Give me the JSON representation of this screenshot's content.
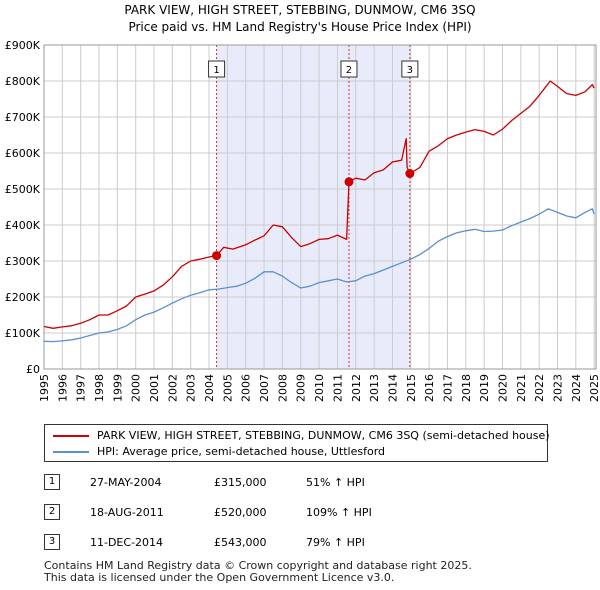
{
  "title": "PARK VIEW, HIGH STREET, STEBBING, DUNMOW, CM6 3SQ",
  "subtitle": "Price paid vs. HM Land Registry's House Price Index (HPI)",
  "colors": {
    "property": "#cc0000",
    "hpi": "#5b8fd0",
    "shade": "#e8ecfa",
    "grid": "#cccccc"
  },
  "chart_data": {
    "type": "line",
    "title": "PARK VIEW, HIGH STREET, STEBBING, DUNMOW, CM6 3SQ",
    "subtitle": "Price paid vs. HM Land Registry's House Price Index (HPI)",
    "xlim": [
      1995,
      2025.1
    ],
    "ylim": [
      0,
      900000
    ],
    "x_tick_labels": [
      "1995",
      "1996",
      "1997",
      "1998",
      "1999",
      "2000",
      "2001",
      "2002",
      "2003",
      "2004",
      "2005",
      "2006",
      "2007",
      "2008",
      "2009",
      "2010",
      "2011",
      "2012",
      "2013",
      "2014",
      "2015",
      "2016",
      "2017",
      "2018",
      "2019",
      "2020",
      "2021",
      "2022",
      "2023",
      "2024",
      "2025"
    ],
    "y_ticks": [
      0,
      100000,
      200000,
      300000,
      400000,
      500000,
      600000,
      700000,
      800000,
      900000
    ],
    "y_tick_labels": [
      "£0",
      "£100K",
      "£200K",
      "£300K",
      "£400K",
      "£500K",
      "£600K",
      "£700K",
      "£800K",
      "£900K"
    ],
    "grid": true,
    "shaded_region": [
      2004.4,
      2014.95
    ],
    "series": [
      {
        "name": "PARK VIEW, HIGH STREET, STEBBING, DUNMOW, CM6 3SQ (semi-detached house)",
        "x": [
          1995.0,
          1995.5,
          1996.0,
          1996.5,
          1997.0,
          1997.5,
          1998.0,
          1998.5,
          1999.0,
          1999.5,
          2000.0,
          2000.5,
          2001.0,
          2001.5,
          2002.0,
          2002.5,
          2003.0,
          2003.5,
          2004.0,
          2004.41,
          2004.8,
          2005.3,
          2006.0,
          2006.5,
          2007.0,
          2007.5,
          2008.0,
          2008.5,
          2009.0,
          2009.5,
          2010.0,
          2010.5,
          2011.0,
          2011.5,
          2011.63,
          2012.0,
          2012.5,
          2013.0,
          2013.5,
          2014.0,
          2014.5,
          2014.75,
          2014.8,
          2014.95,
          2015.5,
          2016.0,
          2016.5,
          2017.0,
          2017.5,
          2018.0,
          2018.5,
          2019.0,
          2019.5,
          2020.0,
          2020.5,
          2021.0,
          2021.5,
          2022.0,
          2022.3,
          2022.6,
          2023.0,
          2023.5,
          2024.0,
          2024.5,
          2024.9,
          2025.0
        ],
        "y": [
          118000,
          113000,
          117000,
          120000,
          127000,
          137000,
          150000,
          150000,
          162000,
          175000,
          200000,
          208000,
          217000,
          233000,
          256000,
          285000,
          300000,
          305000,
          311000,
          315000,
          338000,
          333000,
          345000,
          358000,
          370000,
          400000,
          395000,
          365000,
          340000,
          348000,
          360000,
          362000,
          372000,
          360000,
          520000,
          530000,
          525000,
          545000,
          553000,
          575000,
          580000,
          640000,
          560000,
          543000,
          560000,
          605000,
          620000,
          640000,
          650000,
          658000,
          665000,
          660000,
          650000,
          666000,
          690000,
          710000,
          730000,
          760000,
          780000,
          800000,
          785000,
          765000,
          760000,
          770000,
          790000,
          780000
        ]
      },
      {
        "name": "HPI: Average price, semi-detached house, Uttlesford",
        "x": [
          1995.0,
          1995.5,
          1996.0,
          1996.5,
          1997.0,
          1997.5,
          1998.0,
          1998.5,
          1999.0,
          1999.5,
          2000.0,
          2000.5,
          2001.0,
          2001.5,
          2002.0,
          2002.5,
          2003.0,
          2003.5,
          2004.0,
          2004.5,
          2005.0,
          2005.5,
          2006.0,
          2006.5,
          2007.0,
          2007.5,
          2008.0,
          2008.5,
          2009.0,
          2009.5,
          2010.0,
          2010.5,
          2011.0,
          2011.5,
          2012.0,
          2012.5,
          2013.0,
          2013.5,
          2014.0,
          2014.5,
          2015.0,
          2015.5,
          2016.0,
          2016.5,
          2017.0,
          2017.5,
          2018.0,
          2018.5,
          2019.0,
          2019.5,
          2020.0,
          2020.5,
          2021.0,
          2021.5,
          2022.0,
          2022.5,
          2023.0,
          2023.5,
          2024.0,
          2024.5,
          2024.9,
          2025.0
        ],
        "y": [
          77000,
          76000,
          78000,
          81000,
          86000,
          93000,
          100000,
          103000,
          110000,
          120000,
          137000,
          150000,
          158000,
          170000,
          183000,
          195000,
          205000,
          212000,
          220000,
          222000,
          226000,
          230000,
          238000,
          252000,
          270000,
          270000,
          258000,
          240000,
          225000,
          230000,
          240000,
          245000,
          250000,
          242000,
          245000,
          258000,
          265000,
          275000,
          285000,
          295000,
          305000,
          318000,
          335000,
          355000,
          368000,
          378000,
          384000,
          388000,
          382000,
          383000,
          386000,
          398000,
          408000,
          418000,
          430000,
          445000,
          435000,
          425000,
          420000,
          435000,
          445000,
          430000
        ]
      }
    ],
    "sales": [
      {
        "num": "1",
        "x": 2004.41,
        "y": 315000
      },
      {
        "num": "2",
        "x": 2011.63,
        "y": 520000
      },
      {
        "num": "3",
        "x": 2014.95,
        "y": 543000
      }
    ]
  },
  "legend": {
    "property_label": "PARK VIEW, HIGH STREET, STEBBING, DUNMOW, CM6 3SQ (semi-detached house)",
    "hpi_label": "HPI: Average price, semi-detached house, Uttlesford"
  },
  "sales_table": [
    {
      "num": "1",
      "date": "27-MAY-2004",
      "price": "£315,000",
      "hpi": "51% ↑ HPI"
    },
    {
      "num": "2",
      "date": "18-AUG-2011",
      "price": "£520,000",
      "hpi": "109% ↑ HPI"
    },
    {
      "num": "3",
      "date": "11-DEC-2014",
      "price": "£543,000",
      "hpi": "79% ↑ HPI"
    }
  ],
  "footer": {
    "line1": "Contains HM Land Registry data © Crown copyright and database right 2025.",
    "line2": "This data is licensed under the Open Government Licence v3.0."
  }
}
